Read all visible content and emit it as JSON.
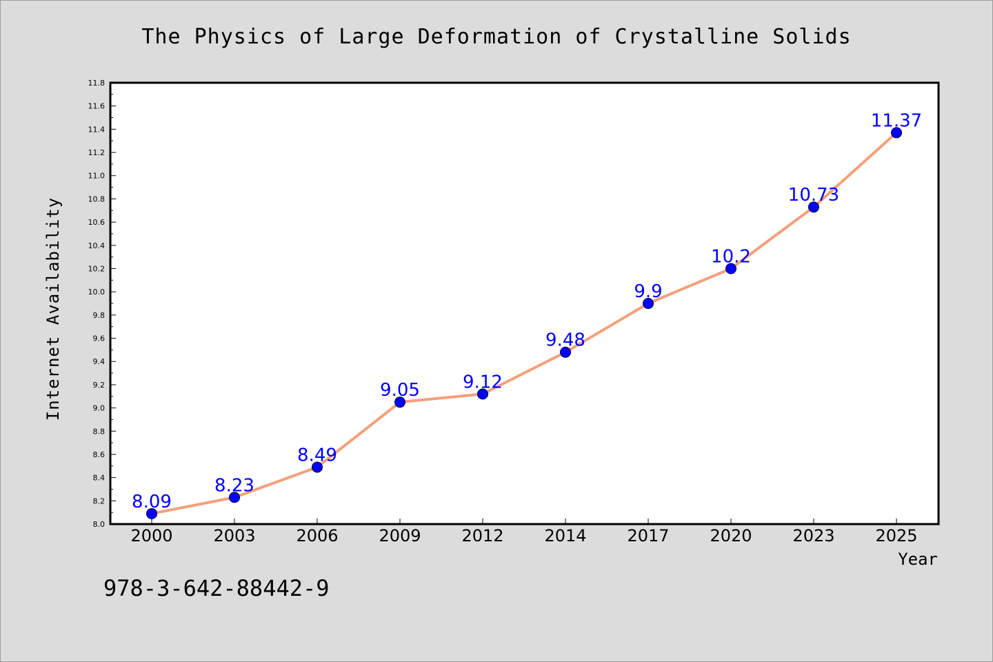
{
  "chart_data": {
    "type": "line",
    "title": "The Physics of Large Deformation of Crystalline Solids",
    "xlabel": "Year",
    "ylabel": "Internet Availability",
    "categories": [
      "2000",
      "2003",
      "2006",
      "2009",
      "2012",
      "2014",
      "2017",
      "2020",
      "2023",
      "2025"
    ],
    "series": [
      {
        "values": [
          8.09,
          8.23,
          8.49,
          9.05,
          9.12,
          9.48,
          9.9,
          10.2,
          10.73,
          11.37
        ],
        "data_labels": [
          "8.09",
          "8.23",
          "8.49",
          "9.05",
          "9.12",
          "9.48",
          "9.9",
          "10.2",
          "10.73",
          "11.37"
        ]
      }
    ],
    "ylim": [
      8.0,
      11.8
    ],
    "yticks": [
      "8.0",
      "8.2",
      "8.4",
      "8.6",
      "8.8",
      "9.0",
      "9.2",
      "9.4",
      "9.6",
      "9.8",
      "10.0",
      "10.2",
      "10.4",
      "10.6",
      "10.8",
      "11.0",
      "11.2",
      "11.4",
      "11.6",
      "11.8"
    ],
    "grid": false,
    "colors": {
      "line": "#f4a07a",
      "marker": "#0000ff",
      "data_label": "#0000ff",
      "background": "#dcdcdc",
      "plot_background": "#ffffff"
    }
  },
  "footer": {
    "isbn": "978-3-642-88442-9"
  }
}
